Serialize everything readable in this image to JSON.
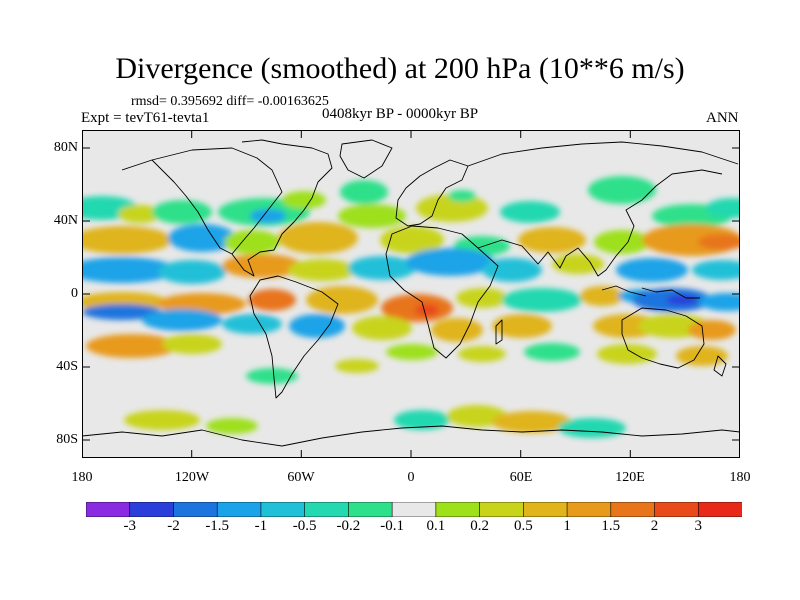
{
  "title": "Divergence (smoothed) at 200 hPa (10**6 m/s)",
  "stats": "rmsd= 0.395692 diff= -0.00163625",
  "experiment": "Expt = tevT61-tevta1",
  "period": "0408kyr BP - 0000kyr BP",
  "season": "ANN",
  "lat_labels": [
    "80N",
    "40N",
    "0",
    "40S",
    "80S"
  ],
  "lon_labels": [
    "180",
    "120W",
    "60W",
    "0",
    "60E",
    "120E",
    "180"
  ],
  "colorbar": {
    "labels": [
      "-3",
      "-2",
      "-1.5",
      "-1",
      "-0.5",
      "-0.2",
      "-0.1",
      "0.1",
      "0.2",
      "0.5",
      "1",
      "1.5",
      "2",
      "3"
    ],
    "colors": [
      "#8a2be2",
      "#2a3ed9",
      "#1c74de",
      "#1aa3e8",
      "#20c0d8",
      "#24d8b0",
      "#2ee08a",
      "#e8e8e8",
      "#9ee01a",
      "#c8d41a",
      "#e0b41a",
      "#e89a1a",
      "#e8741c",
      "#e84a1a",
      "#e82818"
    ]
  },
  "colors": {
    "background": "#e8e8e8",
    "coastline": "#000000"
  }
}
